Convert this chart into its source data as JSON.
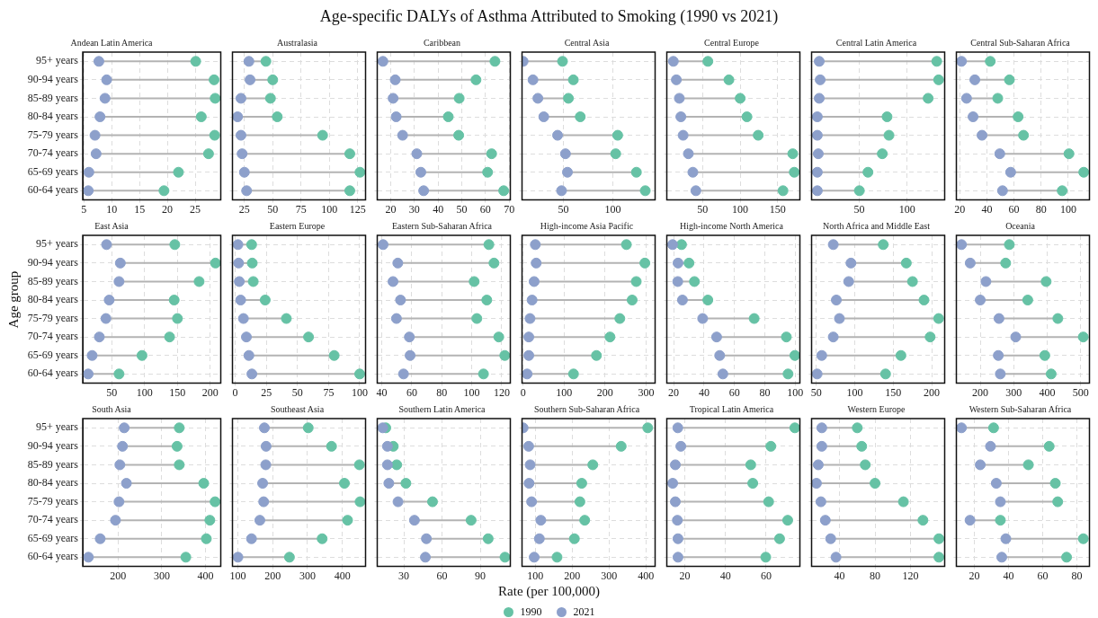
{
  "chart_data": [
    {
      "type": "scatter",
      "orientation": "horizontal",
      "title": "Andean Latin America",
      "legend": "bottom",
      "annotations": [
        "Age-specific DALYs of Asthma Attributed to Smoking (1990 vs 2021)"
      ],
      "categories": [
        "95+ years",
        "90-94 years",
        "85-89 years",
        "80-84 years",
        "75-79 years",
        "70-74 years",
        "65-69 years",
        "60-64 years"
      ],
      "xlim": [
        4.8,
        29.6
      ],
      "xticks": [
        5,
        10,
        15,
        20,
        25
      ],
      "grid": true,
      "marker": "circle",
      "series": [
        {
          "name": "1990",
          "color": "#66c2a5",
          "values": [
            25.1,
            28.4,
            28.6,
            26.1,
            28.5,
            27.4,
            22.0,
            19.4
          ]
        },
        {
          "name": "2021",
          "color": "#8da0cb",
          "values": [
            7.7,
            9.1,
            8.8,
            7.9,
            7.0,
            7.2,
            5.9,
            5.8
          ]
        }
      ]
    },
    {
      "type": "scatter",
      "orientation": "horizontal",
      "title": "Australasia",
      "tick_labels": "x",
      "categories": [
        null,
        null,
        null,
        null,
        null,
        null,
        null,
        null
      ],
      "xlim": [
        14.5,
        131.9
      ],
      "xticks": [
        25,
        50,
        75,
        100,
        125
      ],
      "grid": true,
      "marker": "circle",
      "series": [
        {
          "name": "1990",
          "color": "#66c2a5",
          "values": [
            44,
            50,
            48,
            54,
            94,
            118,
            127,
            118
          ]
        },
        {
          "name": "2021",
          "color": "#8da0cb",
          "values": [
            29,
            30,
            22,
            19,
            22,
            23,
            25,
            27
          ]
        }
      ]
    },
    {
      "type": "scatter",
      "orientation": "horizontal",
      "title": "Caribbean",
      "tick_labels": "x",
      "categories": [
        null,
        null,
        null,
        null,
        null,
        null,
        null,
        null
      ],
      "xlim": [
        14.3,
        70.5
      ],
      "xticks": [
        20,
        30,
        40,
        50,
        60,
        70
      ],
      "grid": true,
      "marker": "circle",
      "series": [
        {
          "name": "1990",
          "color": "#66c2a5",
          "values": [
            64,
            56,
            48.9,
            44.3,
            48.7,
            62.6,
            60.9,
            67.7
          ]
        },
        {
          "name": "2021",
          "color": "#8da0cb",
          "values": [
            16.7,
            21.9,
            21,
            22.3,
            25,
            31,
            32.7,
            33.9
          ]
        }
      ]
    },
    {
      "type": "scatter",
      "orientation": "horizontal",
      "title": "Central Asia",
      "tick_labels": "x",
      "categories": [
        null,
        null,
        null,
        null,
        null,
        null,
        null,
        null
      ],
      "xlim": [
        7.9,
        143
      ],
      "xticks": [
        50,
        100
      ],
      "grid": true,
      "marker": "circle",
      "series": [
        {
          "name": "1990",
          "color": "#66c2a5",
          "values": [
            49,
            60,
            55,
            67,
            105,
            103,
            124,
            133
          ]
        },
        {
          "name": "2021",
          "color": "#8da0cb",
          "values": [
            9,
            19,
            24,
            30,
            44,
            52,
            54,
            48
          ]
        }
      ]
    },
    {
      "type": "scatter",
      "orientation": "horizontal",
      "title": "Central Europe",
      "tick_labels": "x",
      "categories": [
        null,
        null,
        null,
        null,
        null,
        null,
        null,
        null
      ],
      "xlim": [
        2.3,
        179.5
      ],
      "xticks": [
        50,
        100,
        150
      ],
      "grid": true,
      "marker": "circle",
      "series": [
        {
          "name": "1990",
          "color": "#66c2a5",
          "values": [
            57,
            85,
            100,
            109,
            124,
            170,
            172,
            157
          ]
        },
        {
          "name": "2021",
          "color": "#8da0cb",
          "values": [
            11,
            15,
            19,
            21,
            24,
            31,
            37,
            41
          ]
        }
      ]
    },
    {
      "type": "scatter",
      "orientation": "horizontal",
      "title": "Central Latin America",
      "tick_labels": "x",
      "categories": [
        null,
        null,
        null,
        null,
        null,
        null,
        null,
        null
      ],
      "xlim": [
        0,
        139.3
      ],
      "xticks": [
        50,
        100
      ],
      "grid": true,
      "marker": "circle",
      "series": [
        {
          "name": "1990",
          "color": "#66c2a5",
          "values": [
            131,
            133,
            122,
            79,
            81,
            74,
            59,
            50
          ]
        },
        {
          "name": "2021",
          "color": "#8da0cb",
          "values": [
            8,
            9,
            8,
            6,
            6,
            7,
            6,
            6
          ]
        }
      ]
    },
    {
      "type": "scatter",
      "orientation": "horizontal",
      "title": "Central Sub-Saharan Africa",
      "tick_labels": "x",
      "categories": [
        null,
        null,
        null,
        null,
        null,
        null,
        null,
        null
      ],
      "xlim": [
        17.5,
        115.6
      ],
      "xticks": [
        20,
        40,
        60,
        80,
        100
      ],
      "grid": true,
      "marker": "circle",
      "series": [
        {
          "name": "1990",
          "color": "#66c2a5",
          "values": [
            42.5,
            56.6,
            48,
            63,
            67,
            100.5,
            111.4,
            95.5
          ]
        },
        {
          "name": "2021",
          "color": "#8da0cb",
          "values": [
            21.3,
            31.1,
            25,
            29.8,
            36.4,
            49.5,
            57.5,
            51.5
          ]
        }
      ]
    },
    {
      "type": "scatter",
      "orientation": "horizontal",
      "title": "East Asia",
      "ylabel": "Age group",
      "categories": [
        "95+ years",
        "90-94 years",
        "85-89 years",
        "80-84 years",
        "75-79 years",
        "70-74 years",
        "65-69 years",
        "60-64 years"
      ],
      "xlim": [
        5.7,
        216
      ],
      "xticks": [
        50,
        100,
        150,
        200
      ],
      "grid": true,
      "marker": "circle",
      "series": [
        {
          "name": "1990",
          "color": "#66c2a5",
          "values": [
            146,
            208,
            183,
            145,
            150,
            138,
            96,
            61
          ]
        },
        {
          "name": "2021",
          "color": "#8da0cb",
          "values": [
            42,
            63,
            61,
            46,
            41,
            31,
            20,
            14
          ]
        }
      ]
    },
    {
      "type": "scatter",
      "orientation": "horizontal",
      "title": "Eastern Europe",
      "tick_labels": "x",
      "categories": [
        null,
        null,
        null,
        null,
        null,
        null,
        null,
        null
      ],
      "xlim": [
        -2.2,
        104.7
      ],
      "xticks": [
        0,
        25,
        50,
        75,
        100
      ],
      "grid": true,
      "marker": "circle",
      "series": [
        {
          "name": "1990",
          "color": "#66c2a5",
          "values": [
            13.2,
            13.7,
            14.5,
            24.1,
            41.1,
            58.9,
            79.5,
            100
          ]
        },
        {
          "name": "2021",
          "color": "#8da0cb",
          "values": [
            2.2,
            2.7,
            3.3,
            4.4,
            6.6,
            9,
            11,
            13.4
          ]
        }
      ]
    },
    {
      "type": "scatter",
      "orientation": "horizontal",
      "title": "Eastern Sub-Saharan Africa",
      "tick_labels": "x",
      "categories": [
        null,
        null,
        null,
        null,
        null,
        null,
        null,
        null
      ],
      "xlim": [
        37,
        125.7
      ],
      "xticks": [
        40,
        60,
        80,
        100,
        120
      ],
      "grid": true,
      "marker": "circle",
      "series": [
        {
          "name": "1990",
          "color": "#66c2a5",
          "values": [
            111.4,
            114.8,
            101.6,
            110,
            103.4,
            118,
            122,
            107.8
          ]
        },
        {
          "name": "2021",
          "color": "#8da0cb",
          "values": [
            40.9,
            50.7,
            47.5,
            52.5,
            49.8,
            58.4,
            58.9,
            54.5
          ]
        }
      ]
    },
    {
      "type": "scatter",
      "orientation": "horizontal",
      "title": "High-income Asia Pacific",
      "tick_labels": "x",
      "categories": [
        null,
        null,
        null,
        null,
        null,
        null,
        null,
        null
      ],
      "xlim": [
        -2.5,
        322
      ],
      "xticks": [
        0,
        100,
        200,
        300
      ],
      "grid": true,
      "marker": "circle",
      "series": [
        {
          "name": "1990",
          "color": "#66c2a5",
          "values": [
            252,
            297,
            276,
            266,
            236,
            212,
            179,
            123
          ]
        },
        {
          "name": "2021",
          "color": "#8da0cb",
          "values": [
            30,
            32,
            27,
            22,
            17,
            14,
            14,
            10
          ]
        }
      ]
    },
    {
      "type": "scatter",
      "orientation": "horizontal",
      "title": "High-income North America",
      "tick_labels": "x",
      "categories": [
        null,
        null,
        null,
        null,
        null,
        null,
        null,
        null
      ],
      "xlim": [
        15.5,
        103.1
      ],
      "xticks": [
        20,
        40,
        60,
        80,
        100
      ],
      "grid": true,
      "marker": "circle",
      "series": [
        {
          "name": "1990",
          "color": "#66c2a5",
          "values": [
            25.2,
            30.1,
            33.7,
            42.5,
            73,
            94.2,
            99.8,
            95.3
          ]
        },
        {
          "name": "2021",
          "color": "#8da0cb",
          "values": [
            19.3,
            22.9,
            22.7,
            25.8,
            39.1,
            48.3,
            50.3,
            52.4
          ]
        }
      ]
    },
    {
      "type": "scatter",
      "orientation": "horizontal",
      "title": "North Africa and Middle East",
      "tick_labels": "x",
      "categories": [
        null,
        null,
        null,
        null,
        null,
        null,
        null,
        null
      ],
      "xlim": [
        43.8,
        216.9
      ],
      "xticks": [
        50,
        100,
        150,
        200
      ],
      "grid": true,
      "marker": "circle",
      "series": [
        {
          "name": "1990",
          "color": "#66c2a5",
          "values": [
            137,
            167,
            175,
            190,
            209,
            198,
            160,
            140
          ]
        },
        {
          "name": "2021",
          "color": "#8da0cb",
          "values": [
            72,
            95,
            92,
            76,
            80,
            72,
            57,
            51
          ]
        }
      ]
    },
    {
      "type": "scatter",
      "orientation": "horizontal",
      "title": "Oceania",
      "tick_labels": "x",
      "categories": [
        null,
        null,
        null,
        null,
        null,
        null,
        null,
        null
      ],
      "xlim": [
        128.6,
        526.5
      ],
      "xticks": [
        200,
        300,
        400,
        500
      ],
      "grid": true,
      "marker": "circle",
      "series": [
        {
          "name": "1990",
          "color": "#66c2a5",
          "values": [
            287,
            276,
            397,
            342,
            432,
            508,
            393,
            412
          ]
        },
        {
          "name": "2021",
          "color": "#8da0cb",
          "values": [
            144,
            170,
            217,
            200,
            256,
            306,
            254,
            260
          ]
        }
      ]
    },
    {
      "type": "scatter",
      "orientation": "horizontal",
      "title": "South Asia",
      "categories": [
        "95+ years",
        "90-94 years",
        "85-89 years",
        "80-84 years",
        "75-79 years",
        "70-74 years",
        "65-69 years",
        "60-64 years"
      ],
      "xlim": [
        119,
        435
      ],
      "xticks": [
        200,
        300,
        400
      ],
      "grid": true,
      "marker": "circle",
      "series": [
        {
          "name": "1990",
          "color": "#66c2a5",
          "values": [
            340,
            335,
            340,
            396,
            422,
            410,
            402,
            355
          ]
        },
        {
          "name": "2021",
          "color": "#8da0cb",
          "values": [
            214,
            210,
            204,
            219,
            202,
            194,
            159,
            132
          ]
        }
      ]
    },
    {
      "type": "scatter",
      "orientation": "horizontal",
      "title": "Southeast Asia",
      "tick_labels": "x",
      "categories": [
        null,
        null,
        null,
        null,
        null,
        null,
        null,
        null
      ],
      "xlim": [
        84.3,
        466.7
      ],
      "xticks": [
        100,
        200,
        300,
        400
      ],
      "grid": true,
      "marker": "circle",
      "series": [
        {
          "name": "1990",
          "color": "#66c2a5",
          "values": [
            302,
            369,
            449,
            406,
            451,
            415,
            342,
            248
          ]
        },
        {
          "name": "2021",
          "color": "#8da0cb",
          "values": [
            176,
            181,
            180,
            171,
            174,
            163,
            139,
            100
          ]
        }
      ]
    },
    {
      "type": "scatter",
      "orientation": "horizontal",
      "title": "Southern Latin America",
      "tick_labels": "x",
      "categories": [
        null,
        null,
        null,
        null,
        null,
        null,
        null,
        null
      ],
      "xlim": [
        9.1,
        113.6
      ],
      "xticks": [
        30,
        60,
        90
      ],
      "grid": true,
      "marker": "circle",
      "series": [
        {
          "name": "1990",
          "color": "#66c2a5",
          "values": [
            15.8,
            21.7,
            24.4,
            31.6,
            52.5,
            82.8,
            96.2,
            109.4
          ]
        },
        {
          "name": "2021",
          "color": "#8da0cb",
          "values": [
            13.4,
            17.1,
            17.1,
            18.2,
            25.4,
            38.3,
            47.7,
            46.9
          ]
        }
      ]
    },
    {
      "type": "scatter",
      "orientation": "horizontal",
      "title": "Southern Sub-Saharan Africa",
      "xlabel": "Rate (per 100,000)",
      "tick_labels": "x",
      "categories": [
        null,
        null,
        null,
        null,
        null,
        null,
        null,
        null
      ],
      "xlim": [
        64,
        425
      ],
      "xticks": [
        100,
        200,
        300,
        400
      ],
      "grid": true,
      "marker": "circle",
      "series": [
        {
          "name": "1990",
          "color": "#66c2a5",
          "values": [
            405,
            333,
            256,
            226,
            221,
            234,
            206,
            159
          ]
        },
        {
          "name": "2021",
          "color": "#8da0cb",
          "values": [
            67,
            82,
            86,
            83,
            90,
            115,
            111,
            97
          ]
        }
      ]
    },
    {
      "type": "scatter",
      "orientation": "horizontal",
      "title": "Tropical Latin America",
      "tick_labels": "x",
      "categories": [
        null,
        null,
        null,
        null,
        null,
        null,
        null,
        null
      ],
      "xlim": [
        11.1,
        76.6
      ],
      "xticks": [
        20,
        40,
        60
      ],
      "grid": true,
      "marker": "circle",
      "series": [
        {
          "name": "1990",
          "color": "#66c2a5",
          "values": [
            74.1,
            62.3,
            52.4,
            53.4,
            61.2,
            70.6,
            66.6,
            59.8
          ]
        },
        {
          "name": "2021",
          "color": "#8da0cb",
          "values": [
            16.5,
            18,
            15.3,
            14,
            15.3,
            16.3,
            16.6,
            16.6
          ]
        }
      ]
    },
    {
      "type": "scatter",
      "orientation": "horizontal",
      "title": "Western Europe",
      "tick_labels": "x",
      "categories": [
        null,
        null,
        null,
        null,
        null,
        null,
        null,
        null
      ],
      "xlim": [
        8.5,
        158.5
      ],
      "xticks": [
        40,
        80,
        120
      ],
      "grid": true,
      "marker": "circle",
      "series": [
        {
          "name": "1990",
          "color": "#66c2a5",
          "values": [
            60,
            65,
            69,
            80,
            112,
            134,
            152,
            152
          ]
        },
        {
          "name": "2021",
          "color": "#8da0cb",
          "values": [
            20,
            20,
            16,
            14,
            19,
            24,
            30,
            36
          ]
        }
      ]
    },
    {
      "type": "scatter",
      "orientation": "horizontal",
      "title": "Western Sub-Saharan Africa",
      "tick_labels": "x",
      "categories": [
        null,
        null,
        null,
        null,
        null,
        null,
        null,
        null
      ],
      "xlim": [
        9.4,
        87.4
      ],
      "xticks": [
        20,
        40,
        60,
        80
      ],
      "grid": true,
      "marker": "circle",
      "series": [
        {
          "name": "1990",
          "color": "#66c2a5",
          "values": [
            31.2,
            63.8,
            51.6,
            67.4,
            68.8,
            35.2,
            83.8,
            74
          ]
        },
        {
          "name": "2021",
          "color": "#8da0cb",
          "values": [
            12.4,
            29.4,
            23.4,
            32.8,
            35.2,
            17.4,
            38.4,
            36
          ]
        }
      ]
    }
  ]
}
